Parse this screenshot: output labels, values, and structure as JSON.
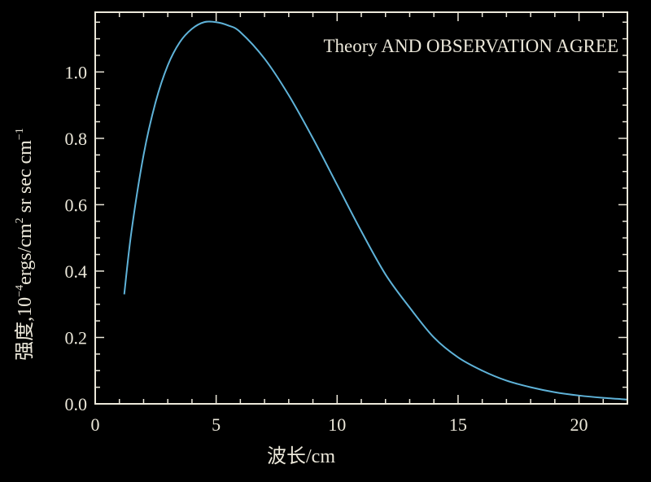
{
  "chart_data": {
    "type": "line",
    "annotation": "Theory AND OBSERVATION AGREE",
    "xlabel": "波长/cm",
    "ylabel_prefix": "强度,10",
    "ylabel_exp1": "−4",
    "ylabel_mid": "ergs/cm",
    "ylabel_exp2": "2",
    "ylabel_suffix": " sr sec cm",
    "ylabel_exp3": "−1",
    "xlim": [
      0,
      22
    ],
    "ylim": [
      0,
      1.18
    ],
    "xticks": [
      0,
      5,
      10,
      15,
      20
    ],
    "xtick_labels": [
      "0",
      "5",
      "10",
      "15",
      "20"
    ],
    "yticks": [
      0.0,
      0.2,
      0.4,
      0.6,
      0.8,
      1.0
    ],
    "ytick_labels": [
      "0.0",
      "0.2",
      "0.4",
      "0.6",
      "0.8",
      "1.0"
    ],
    "grid": false,
    "colors": {
      "background": "#000000",
      "frame": "#ece8da",
      "line": "#5fb3d9"
    },
    "series": [
      {
        "x": [
          1.2,
          1.5,
          2.0,
          2.5,
          3.0,
          3.5,
          4.0,
          4.5,
          5.0,
          5.5,
          6.0,
          7.0,
          8.0,
          9.0,
          10.0,
          11.0,
          12.0,
          13.0,
          14.0,
          15.0,
          16.0,
          17.0,
          18.0,
          19.0,
          20.0,
          21.0,
          22.0
        ],
        "y": [
          0.33,
          0.52,
          0.75,
          0.91,
          1.02,
          1.09,
          1.13,
          1.15,
          1.15,
          1.14,
          1.12,
          1.04,
          0.93,
          0.8,
          0.66,
          0.52,
          0.39,
          0.29,
          0.2,
          0.14,
          0.1,
          0.07,
          0.05,
          0.035,
          0.025,
          0.018,
          0.013
        ]
      }
    ]
  }
}
